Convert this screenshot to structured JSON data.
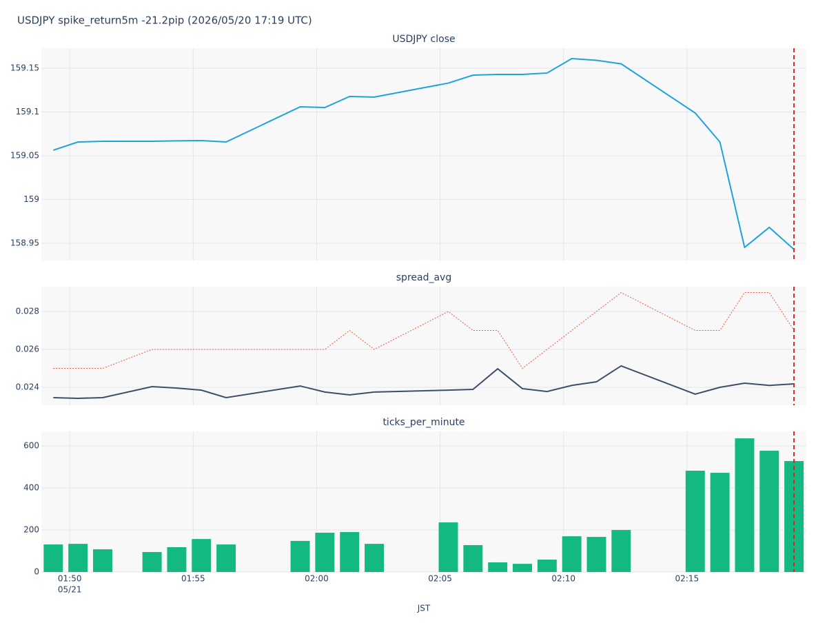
{
  "title": "USDJPY spike_return5m -21.2pip (2026/05/20 17:19 UTC)",
  "xlabel": "JST",
  "date_label": "05/21",
  "chart_data": [
    {
      "type": "line",
      "title": "USDJPY close",
      "color": "#1ba3dd",
      "x": [
        "01:49:20",
        "01:50:20",
        "01:51:20",
        "01:53:20",
        "01:54:20",
        "01:55:20",
        "01:56:20",
        "01:59:20",
        "02:00:20",
        "02:01:20",
        "02:02:20",
        "02:05:20",
        "02:06:20",
        "02:07:20",
        "02:08:20",
        "02:09:20",
        "02:10:20",
        "02:11:20",
        "02:12:20",
        "02:15:20",
        "02:16:20",
        "02:17:20",
        "02:18:20",
        "02:19:20"
      ],
      "values": [
        159.0563,
        159.0657,
        159.0665,
        159.0665,
        159.067,
        159.0673,
        159.0657,
        159.1059,
        159.1051,
        159.1177,
        159.117,
        159.133,
        159.1421,
        159.1429,
        159.1429,
        159.1445,
        159.161,
        159.159,
        159.155,
        159.0988,
        159.0657,
        158.9453,
        158.9681,
        158.943
      ],
      "xlim": [
        "01:48:51",
        "02:19:50"
      ],
      "xticks": [
        "01:50",
        "01:55",
        "02:00",
        "02:05",
        "02:10",
        "02:15"
      ],
      "ylim": [
        158.9303,
        159.1728
      ],
      "yticks": [
        158.95,
        159,
        159.05,
        159.1,
        159.15
      ],
      "grid": true,
      "vline": "02:19:20",
      "vline_color": "#d62728"
    },
    {
      "type": "line",
      "title": "spread_avg",
      "x": [
        "01:49:20",
        "01:50:20",
        "01:51:20",
        "01:53:20",
        "01:54:20",
        "01:55:20",
        "01:56:20",
        "01:59:20",
        "02:00:20",
        "02:01:20",
        "02:02:20",
        "02:05:20",
        "02:06:20",
        "02:07:20",
        "02:08:20",
        "02:09:20",
        "02:10:20",
        "02:11:20",
        "02:12:20",
        "02:15:20",
        "02:16:20",
        "02:17:20",
        "02:18:20",
        "02:19:20"
      ],
      "series": [
        {
          "color": "#3d4f66",
          "style": "solid",
          "values": [
            0.023455,
            0.02342,
            0.023455,
            0.024036,
            0.02396,
            0.02385,
            0.023455,
            0.02407,
            0.02375,
            0.0236,
            0.02375,
            0.02385,
            0.02389,
            0.02498,
            0.02393,
            0.02378,
            0.0241,
            0.02429,
            0.02513,
            0.02364,
            0.024,
            0.02422,
            0.0241,
            0.02418
          ]
        },
        {
          "color": "#ef553b",
          "style": "dotted",
          "values": [
            0.025,
            0.025,
            0.025,
            0.026,
            0.026,
            0.026,
            0.026,
            0.026,
            0.026,
            0.027,
            0.026,
            0.028,
            0.027,
            0.027,
            0.025,
            0.026,
            0.027,
            0.028,
            0.029,
            0.027,
            0.027,
            0.029,
            0.029,
            0.027
          ]
        }
      ],
      "xlim": [
        "01:48:51",
        "02:19:50"
      ],
      "xticks": [
        "01:50",
        "01:55",
        "02:00",
        "02:05",
        "02:10",
        "02:15"
      ],
      "ylim": [
        0.023055,
        0.029309
      ],
      "yticks": [
        0.024,
        0.026,
        0.028
      ],
      "grid": true,
      "vline": "02:19:20",
      "vline_color": "#d62728"
    },
    {
      "type": "bar",
      "title": "ticks_per_minute",
      "color": "#13b981",
      "x": [
        "01:49:20",
        "01:50:20",
        "01:51:20",
        "01:53:20",
        "01:54:20",
        "01:55:20",
        "01:56:20",
        "01:59:20",
        "02:00:20",
        "02:01:20",
        "02:02:20",
        "02:05:20",
        "02:06:20",
        "02:07:20",
        "02:08:20",
        "02:09:20",
        "02:10:20",
        "02:11:20",
        "02:12:20",
        "02:15:20",
        "02:16:20",
        "02:17:20",
        "02:18:20",
        "02:19:20"
      ],
      "values": [
        131,
        134,
        108,
        95,
        118,
        157,
        131,
        148,
        187,
        190,
        134,
        236,
        128,
        46,
        39,
        59,
        170,
        167,
        200,
        482,
        472,
        636,
        577,
        528
      ],
      "xlim": [
        "01:48:51",
        "02:19:50"
      ],
      "xticks": [
        "01:50",
        "01:55",
        "02:00",
        "02:05",
        "02:10",
        "02:15"
      ],
      "ylim": [
        0,
        669
      ],
      "yticks": [
        0,
        200,
        400,
        600
      ],
      "grid": true,
      "vline": "02:19:20",
      "vline_color": "#d62728"
    }
  ]
}
